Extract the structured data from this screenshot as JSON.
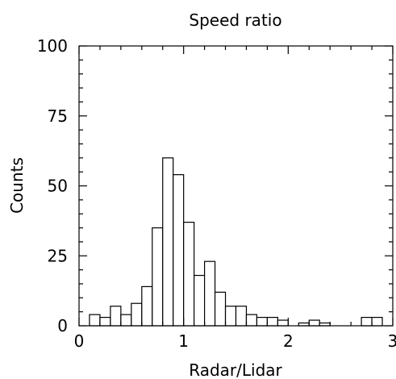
{
  "chart_data": {
    "type": "bar",
    "title": "Speed ratio",
    "xlabel": "Radar/Lidar",
    "ylabel": "Counts",
    "xlim": [
      0,
      3
    ],
    "ylim": [
      0,
      100
    ],
    "x_ticks": [
      0,
      1,
      2,
      3
    ],
    "y_ticks": [
      0,
      25,
      50,
      75,
      100
    ],
    "bin_width": 0.1,
    "bins": [
      {
        "start": 0.0,
        "value": 0
      },
      {
        "start": 0.1,
        "value": 4
      },
      {
        "start": 0.2,
        "value": 3
      },
      {
        "start": 0.3,
        "value": 7
      },
      {
        "start": 0.4,
        "value": 4
      },
      {
        "start": 0.5,
        "value": 8
      },
      {
        "start": 0.6,
        "value": 14
      },
      {
        "start": 0.7,
        "value": 35
      },
      {
        "start": 0.8,
        "value": 60
      },
      {
        "start": 0.9,
        "value": 54
      },
      {
        "start": 1.0,
        "value": 37
      },
      {
        "start": 1.1,
        "value": 18
      },
      {
        "start": 1.2,
        "value": 23
      },
      {
        "start": 1.3,
        "value": 12
      },
      {
        "start": 1.4,
        "value": 7
      },
      {
        "start": 1.5,
        "value": 7
      },
      {
        "start": 1.6,
        "value": 4
      },
      {
        "start": 1.7,
        "value": 3
      },
      {
        "start": 1.8,
        "value": 3
      },
      {
        "start": 1.9,
        "value": 2
      },
      {
        "start": 2.0,
        "value": 0
      },
      {
        "start": 2.1,
        "value": 1
      },
      {
        "start": 2.2,
        "value": 2
      },
      {
        "start": 2.3,
        "value": 1
      },
      {
        "start": 2.4,
        "value": 0
      },
      {
        "start": 2.5,
        "value": 0
      },
      {
        "start": 2.6,
        "value": 0
      },
      {
        "start": 2.7,
        "value": 3
      },
      {
        "start": 2.8,
        "value": 3
      },
      {
        "start": 2.9,
        "value": 0
      }
    ],
    "grid": false
  }
}
